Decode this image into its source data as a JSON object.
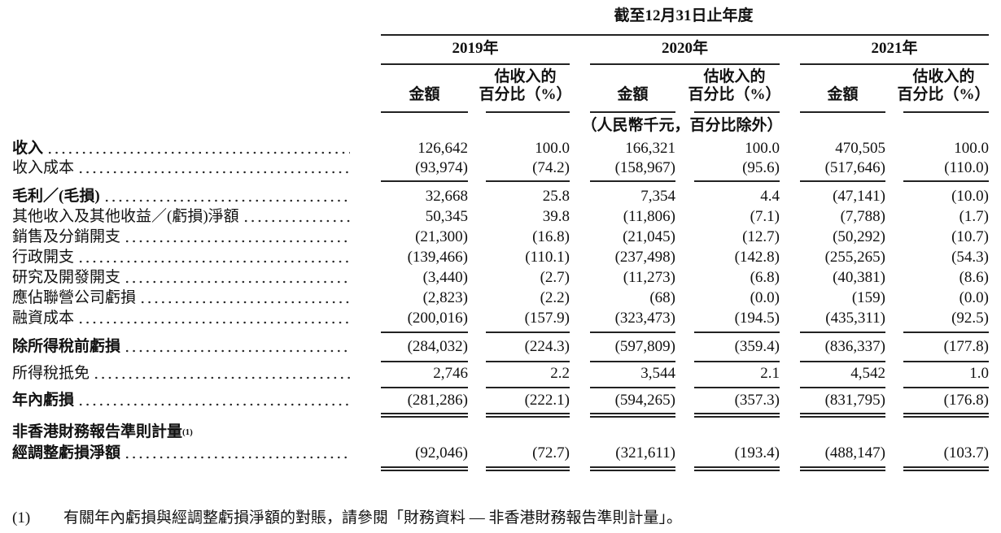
{
  "header": {
    "period": "截至12月31日止年度",
    "years": [
      "2019年",
      "2020年",
      "2021年"
    ],
    "col_amount": "金額",
    "col_pct_1": "估收入的",
    "col_pct_2": "百分比（%）",
    "unit": "（人民幣千元，百分比除外）"
  },
  "table": {
    "rows": [
      {
        "label": "收入",
        "bold": true,
        "values": [
          "126,642",
          "100.0",
          "166,321",
          "100.0",
          "470,505",
          "100.0"
        ]
      },
      {
        "label": "收入成本",
        "bold": false,
        "values": [
          "(93,974)",
          "(74.2)",
          "(158,967)",
          "(95.6)",
          "(517,646)",
          "(110.0)"
        ]
      },
      {
        "label": "毛利／(毛損)",
        "bold": true,
        "values": [
          "32,668",
          "25.8",
          "7,354",
          "4.4",
          "(47,141)",
          "(10.0)"
        ]
      },
      {
        "label": "其他收入及其他收益／(虧損)淨額",
        "bold": false,
        "values": [
          "50,345",
          "39.8",
          "(11,806)",
          "(7.1)",
          "(7,788)",
          "(1.7)"
        ]
      },
      {
        "label": "銷售及分銷開支",
        "bold": false,
        "values": [
          "(21,300)",
          "(16.8)",
          "(21,045)",
          "(12.7)",
          "(50,292)",
          "(10.7)"
        ]
      },
      {
        "label": "行政開支",
        "bold": false,
        "values": [
          "(139,466)",
          "(110.1)",
          "(237,498)",
          "(142.8)",
          "(255,265)",
          "(54.3)"
        ]
      },
      {
        "label": "研究及開發開支",
        "bold": false,
        "values": [
          "(3,440)",
          "(2.7)",
          "(11,273)",
          "(6.8)",
          "(40,381)",
          "(8.6)"
        ]
      },
      {
        "label": "應佔聯營公司虧損",
        "bold": false,
        "values": [
          "(2,823)",
          "(2.2)",
          "(68)",
          "(0.0)",
          "(159)",
          "(0.0)"
        ]
      },
      {
        "label": "融資成本",
        "bold": false,
        "values": [
          "(200,016)",
          "(157.9)",
          "(323,473)",
          "(194.5)",
          "(435,311)",
          "(92.5)"
        ]
      },
      {
        "label": "除所得稅前虧損",
        "bold": true,
        "values": [
          "(284,032)",
          "(224.3)",
          "(597,809)",
          "(359.4)",
          "(836,337)",
          "(177.8)"
        ]
      },
      {
        "label": "所得稅抵免",
        "bold": false,
        "values": [
          "2,746",
          "2.2",
          "3,544",
          "2.1",
          "4,542",
          "1.0"
        ]
      },
      {
        "label": "年內虧損",
        "bold": true,
        "values": [
          "(281,286)",
          "(222.1)",
          "(594,265)",
          "(357.3)",
          "(831,795)",
          "(176.8)"
        ]
      },
      {
        "label": "非香港財務報告準則計量",
        "note_ref": "(1)",
        "label_2": "經調整虧損淨額",
        "bold": true,
        "values": [
          "(92,046)",
          "(72.7)",
          "(321,611)",
          "(193.4)",
          "(488,147)",
          "(103.7)"
        ]
      }
    ]
  },
  "footnote": {
    "marker": "(1)",
    "text": "有關年內虧損與經調整虧損淨額的對賬，請參閱「財務資料 — 非香港財務報告準則計量」。"
  }
}
